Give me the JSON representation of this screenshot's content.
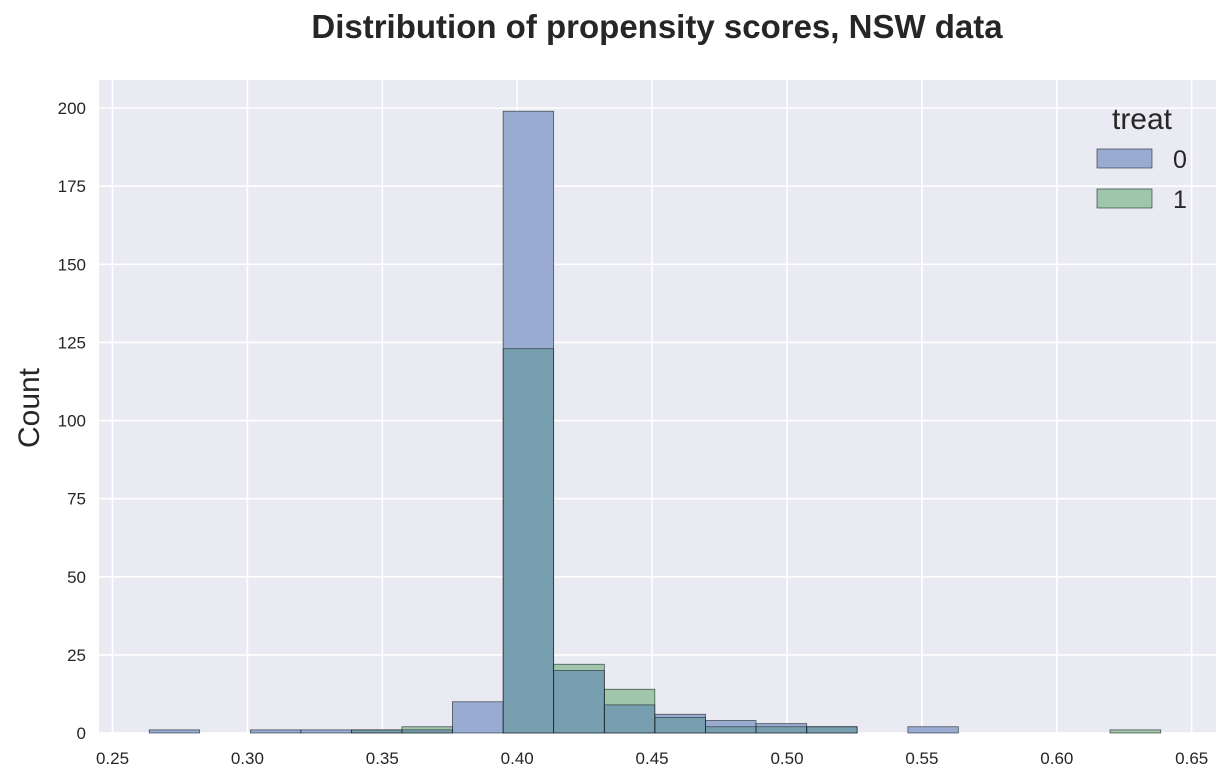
{
  "chart_data": {
    "type": "bar",
    "title": "Distribution of propensity scores, NSW data",
    "xlabel": "",
    "ylabel": "Count",
    "xlim": [
      0.245,
      0.659
    ],
    "ylim": [
      0,
      209
    ],
    "grid": true,
    "legend_placement": "top-right",
    "x_ticks": [
      0.25,
      0.3,
      0.35,
      0.4,
      0.45,
      0.5,
      0.55,
      0.6,
      0.65
    ],
    "x_tick_labels": [
      "0.25",
      "0.30",
      "0.35",
      "0.40",
      "0.45",
      "0.50",
      "0.55",
      "0.60",
      "0.65"
    ],
    "y_ticks": [
      0,
      25,
      50,
      75,
      100,
      125,
      150,
      175,
      200
    ],
    "y_tick_labels": [
      "0",
      "25",
      "50",
      "75",
      "100",
      "125",
      "150",
      "175",
      "200"
    ],
    "bin_edges": [
      0.2636,
      0.2823,
      0.3011,
      0.3198,
      0.3386,
      0.3573,
      0.376,
      0.3948,
      0.4135,
      0.4323,
      0.451,
      0.4698,
      0.4885,
      0.5073,
      0.526,
      0.5448,
      0.5635,
      0.5822,
      0.601,
      0.6197,
      0.6385
    ],
    "legend_title": "treat",
    "series": [
      {
        "name": "0",
        "color": "#9aabd1",
        "values": [
          1,
          0,
          1,
          1,
          1,
          1,
          10,
          199,
          20,
          9,
          6,
          4,
          3,
          2,
          0,
          2,
          0,
          0,
          0,
          0
        ]
      },
      {
        "name": "1",
        "color": "#9fc6ab",
        "values": [
          0,
          0,
          0,
          0,
          1,
          2,
          0,
          123,
          22,
          14,
          5,
          2,
          2,
          2,
          0,
          0,
          0,
          0,
          0,
          1
        ]
      }
    ],
    "overlap_color": "#779fb0"
  }
}
